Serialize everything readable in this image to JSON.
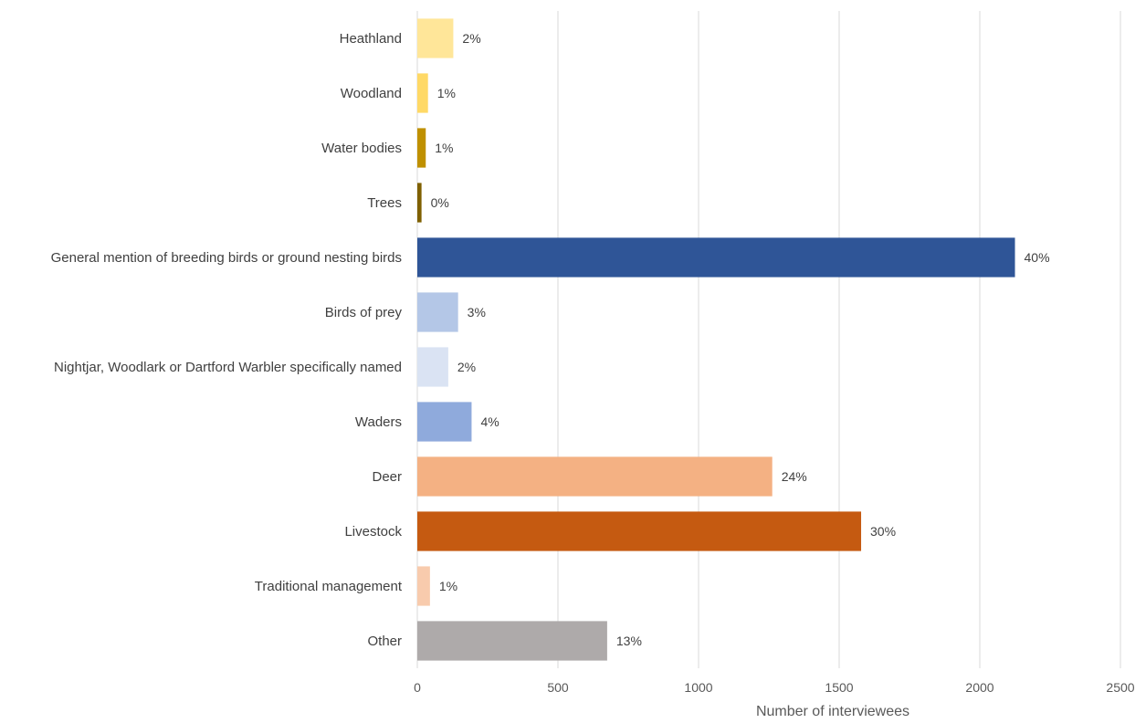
{
  "chart_data": {
    "type": "bar",
    "orientation": "horizontal",
    "categories": [
      "Heathland",
      "Woodland",
      "Water bodies",
      "Trees",
      "General mention of breeding birds or ground nesting birds",
      "Birds of prey",
      "Nightjar, Woodlark or Dartford Warbler specifically named",
      "Waders",
      "Deer",
      "Livestock",
      "Traditional management",
      "Other"
    ],
    "values": [
      128,
      38,
      30,
      15,
      2125,
      145,
      110,
      193,
      1262,
      1578,
      45,
      675
    ],
    "data_labels": [
      "2%",
      "1%",
      "1%",
      "0%",
      "40%",
      "3%",
      "2%",
      "4%",
      "24%",
      "30%",
      "1%",
      "13%"
    ],
    "colors": [
      "#FFE699",
      "#FFD966",
      "#BF9000",
      "#7F6000",
      "#2F5597",
      "#B4C7E7",
      "#DAE3F3",
      "#8FAADC",
      "#F4B183",
      "#C55A11",
      "#F8CBAD",
      "#AEAAAA"
    ],
    "xlabel": "Number of interviewees",
    "ylabel": "",
    "title": "",
    "xlim": [
      0,
      2500
    ],
    "xticks": [
      0,
      500,
      1000,
      1500,
      2000,
      2500
    ],
    "xtick_labels": [
      "0",
      "500",
      "1000",
      "1500",
      "2000",
      "2500"
    ],
    "grid": "vertical",
    "legend": "none"
  }
}
